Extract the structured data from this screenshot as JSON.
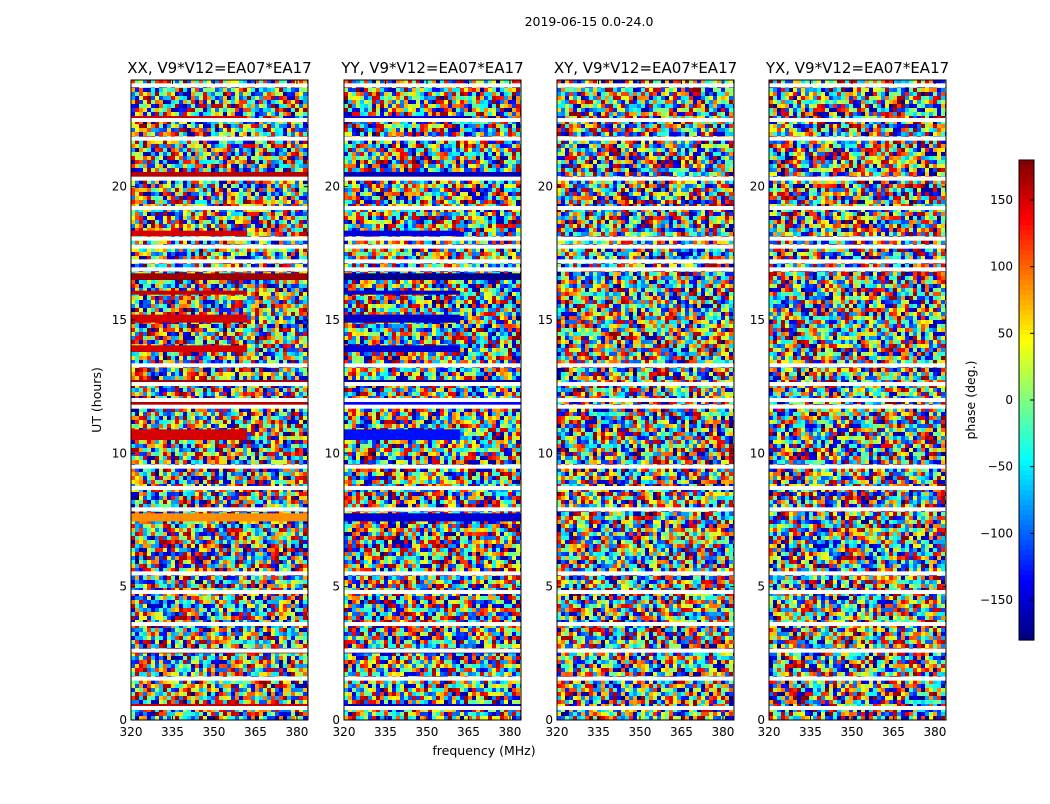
{
  "figure": {
    "suptitle": "2019-06-15 0.0-24.0"
  },
  "chart_data": {
    "type": "heatmap",
    "suptitle": "2019-06-15 0.0-24.0",
    "xlabel": "frequency (MHz)",
    "ylabel": "UT (hours)",
    "xlim": [
      320,
      384
    ],
    "ylim": [
      0,
      24
    ],
    "xticks": [
      320,
      335,
      350,
      365,
      380
    ],
    "yticks": [
      0,
      5,
      10,
      15,
      20
    ],
    "panels": [
      {
        "title": "XX, V9*V12=EA07*EA17",
        "dominant_phase": 150
      },
      {
        "title": "YY, V9*V12=EA07*EA17",
        "dominant_phase": -150
      },
      {
        "title": "XY, V9*V12=EA07*EA17",
        "dominant_phase": null
      },
      {
        "title": "YX, V9*V12=EA07*EA17",
        "dominant_phase": null
      }
    ],
    "flagged_ut_hours": [
      0.45,
      1.55,
      2.6,
      3.6,
      4.8,
      5.5,
      7.9,
      8.7,
      9.5,
      11.75,
      12.0,
      12.6,
      13.3,
      16.9,
      17.2,
      17.75,
      18.05,
      19.2,
      20.3,
      21.8,
      22.5,
      23.8
    ],
    "coherent_bands": [
      {
        "ut_start": 0.4,
        "ut_end": 0.6,
        "freq_end": 384,
        "xx_phase": 155,
        "yy_phase": -160
      },
      {
        "ut_start": 2.5,
        "ut_end": 2.65,
        "freq_end": 384,
        "xx_phase": 175,
        "yy_phase": -175
      },
      {
        "ut_start": 7.45,
        "ut_end": 7.75,
        "freq_end": 384,
        "xx_phase": 85,
        "yy_phase": -150
      },
      {
        "ut_start": 10.5,
        "ut_end": 10.9,
        "freq_end": 362,
        "xx_phase": 150,
        "yy_phase": -130
      },
      {
        "ut_start": 11.8,
        "ut_end": 12.05,
        "freq_end": 384,
        "xx_phase": 160,
        "yy_phase": -135
      },
      {
        "ut_start": 12.55,
        "ut_end": 12.75,
        "freq_end": 384,
        "xx_phase": 165,
        "yy_phase": -170
      },
      {
        "ut_start": 13.8,
        "ut_end": 14.05,
        "freq_end": 362,
        "xx_phase": 150,
        "yy_phase": -150
      },
      {
        "ut_start": 14.9,
        "ut_end": 15.2,
        "freq_end": 362,
        "xx_phase": 150,
        "yy_phase": -155
      },
      {
        "ut_start": 15.95,
        "ut_end": 16.1,
        "freq_end": 362,
        "xx_phase": 155,
        "yy_phase": -150
      },
      {
        "ut_start": 16.5,
        "ut_end": 16.75,
        "freq_end": 384,
        "xx_phase": 170,
        "yy_phase": -175
      },
      {
        "ut_start": 18.15,
        "ut_end": 18.35,
        "freq_end": 362,
        "xx_phase": 150,
        "yy_phase": -145
      },
      {
        "ut_start": 20.3,
        "ut_end": 20.55,
        "freq_end": 384,
        "xx_phase": 160,
        "yy_phase": -160
      },
      {
        "ut_start": 22.5,
        "ut_end": 22.65,
        "freq_end": 362,
        "xx_phase": 150,
        "yy_phase": -140
      }
    ],
    "colorbar": {
      "label": "phase (deg.)",
      "range": [
        -180,
        180
      ],
      "ticks": [
        -150,
        -100,
        -50,
        0,
        50,
        100,
        150
      ],
      "tick_labels": [
        "−150",
        "−100",
        "−50",
        "0",
        "50",
        "100",
        "150"
      ],
      "colormap": "jet",
      "colors": [
        "#00007f",
        "#0000ff",
        "#007fff",
        "#00ffff",
        "#7fff7f",
        "#ffff00",
        "#ff7f00",
        "#ff0000",
        "#7f0000"
      ]
    },
    "grid": false,
    "legend": false
  }
}
